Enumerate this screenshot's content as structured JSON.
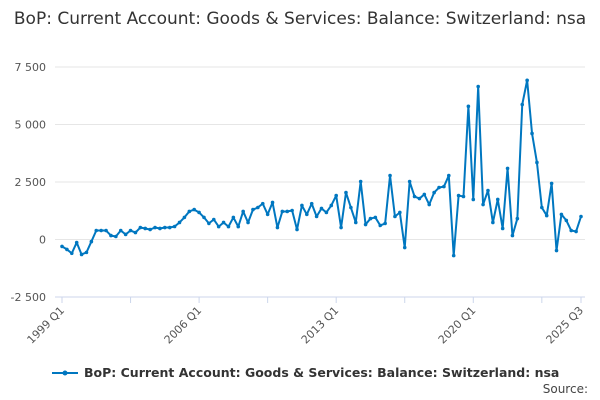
{
  "chart_data": {
    "type": "line",
    "title": "BoP: Current Account: Goods & Services: Balance: Switzerland: nsa",
    "xlabel": "",
    "ylabel": "",
    "ylim": [
      -2500,
      7500
    ],
    "yticks": [
      -2500,
      0,
      2500,
      5000,
      7500
    ],
    "ytick_labels": [
      "-2 500",
      "0",
      "2 500",
      "5 000",
      "7 500"
    ],
    "xtick_labels": [
      "1999 Q1",
      "2006 Q1",
      "2013 Q1",
      "2020 Q1",
      "2025 Q3"
    ],
    "grid": true,
    "legend_placement": "bottom",
    "color": "#0077c0",
    "start_period": "1999 Q1",
    "end_period": "2025 Q3",
    "series": [
      {
        "name": "BoP: Current Account: Goods & Services: Balance: Switzerland: nsa",
        "values": [
          -300,
          -430,
          -600,
          -130,
          -650,
          -560,
          -90,
          390,
          390,
          390,
          170,
          130,
          390,
          220,
          390,
          300,
          520,
          480,
          435,
          520,
          480,
          520,
          520,
          565,
          740,
          960,
          1220,
          1300,
          1175,
          960,
          700,
          870,
          560,
          740,
          560,
          960,
          560,
          1220,
          740,
          1300,
          1390,
          1560,
          1090,
          1610,
          520,
          1220,
          1220,
          1260,
          435,
          1480,
          1090,
          1560,
          1000,
          1350,
          1175,
          1480,
          1910,
          520,
          2040,
          1390,
          740,
          2520,
          650,
          910,
          960,
          610,
          700,
          2780,
          1000,
          1175,
          -350,
          2520,
          1870,
          1780,
          1960,
          1520,
          2040,
          2260,
          2300,
          2780,
          -700,
          1910,
          1870,
          5790,
          1740,
          6650,
          1520,
          2130,
          740,
          1740,
          480,
          3090,
          170,
          910,
          5870,
          6920,
          4610,
          3350,
          1390,
          1040,
          2440,
          -480,
          1090,
          830,
          390,
          350,
          1000
        ]
      }
    ]
  },
  "footer": {
    "source": "Source:"
  }
}
